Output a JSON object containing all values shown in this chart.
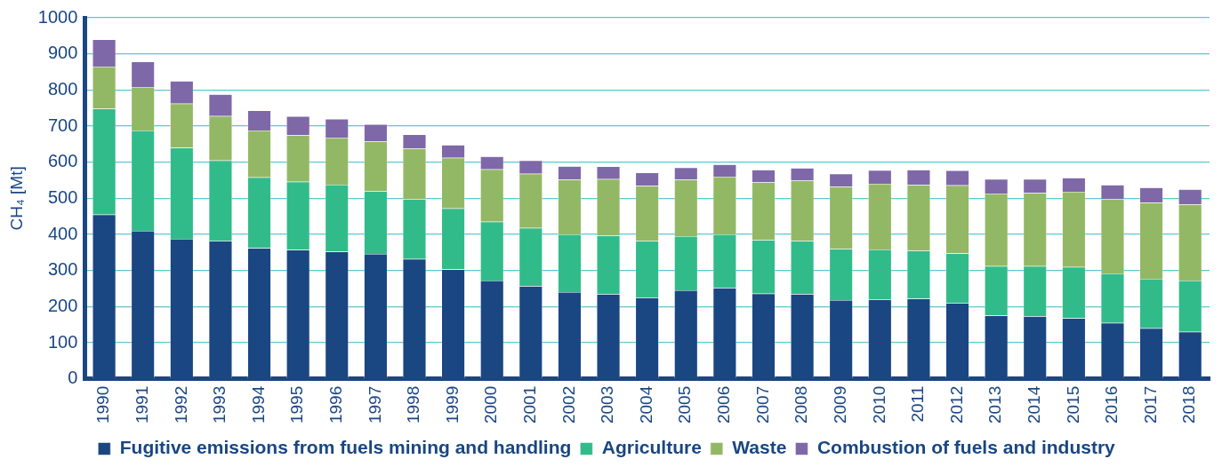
{
  "chart_data": {
    "type": "bar",
    "ylabel": "CH₄ [Mt]",
    "stacked": true,
    "grid": "y",
    "legend": "bottom",
    "ylim": [
      0,
      1000
    ],
    "yticks": [
      0,
      100,
      200,
      300,
      400,
      500,
      600,
      700,
      800,
      900,
      1000
    ],
    "categories": [
      "1990",
      "1991",
      "1992",
      "1993",
      "1994",
      "1995",
      "1996",
      "1997",
      "1998",
      "1999",
      "2000",
      "2001",
      "2002",
      "2003",
      "2004",
      "2005",
      "2006",
      "2007",
      "2008",
      "2009",
      "2010",
      "2011",
      "2012",
      "2013",
      "2014",
      "2015",
      "2016",
      "2017",
      "2018"
    ],
    "series": [
      {
        "name": "Fugitive emissions from fuels mining and handling",
        "color": "#1a4682",
        "values": [
          455,
          410,
          388,
          382,
          362,
          357,
          352,
          346,
          332,
          303,
          272,
          257,
          240,
          235,
          225,
          245,
          252,
          236,
          235,
          218,
          220,
          222,
          210,
          175,
          173,
          168,
          155,
          140,
          130
        ]
      },
      {
        "name": "Agriculture",
        "color": "#32bb8a",
        "values": [
          293,
          278,
          252,
          223,
          196,
          189,
          186,
          174,
          166,
          169,
          163,
          161,
          160,
          162,
          157,
          150,
          148,
          149,
          147,
          142,
          138,
          133,
          137,
          137,
          139,
          142,
          137,
          137,
          142
        ]
      },
      {
        "name": "Waste",
        "color": "#93b865",
        "values": [
          117,
          120,
          122,
          123,
          130,
          129,
          130,
          137,
          140,
          140,
          145,
          150,
          152,
          156,
          153,
          157,
          160,
          159,
          167,
          172,
          182,
          182,
          189,
          201,
          203,
          208,
          205,
          211,
          211
        ]
      },
      {
        "name": "Combustion of fuels and industry",
        "color": "#7f68a8",
        "values": [
          75,
          70,
          63,
          60,
          55,
          52,
          52,
          48,
          39,
          36,
          36,
          37,
          37,
          35,
          36,
          33,
          34,
          35,
          35,
          36,
          38,
          42,
          41,
          40,
          38,
          39,
          40,
          42,
          42
        ]
      }
    ]
  }
}
